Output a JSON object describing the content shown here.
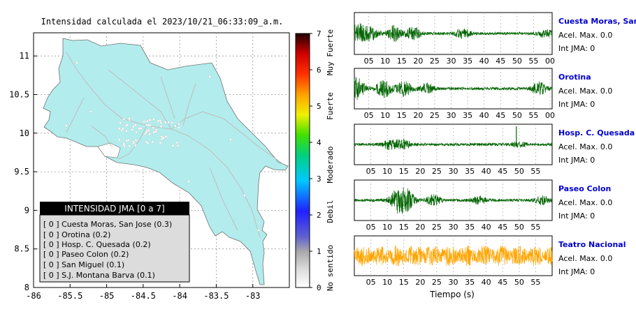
{
  "map": {
    "title": "Intensidad calculada el 2023/10/21_06:33:09_a.m.",
    "x_ticks": [
      "-86",
      "-85.5",
      "-85",
      "-84.5",
      "-84",
      "-83.5",
      "-83"
    ],
    "y_ticks": [
      "11",
      "10.5",
      "10",
      "9.5",
      "9",
      "8.5",
      "8"
    ],
    "xlim": [
      -86,
      -82.5
    ],
    "ylim": [
      8,
      11.3
    ],
    "land_color": "#b3ecec",
    "road_color": "#bdbdbd"
  },
  "legend": {
    "title": "INTENSIDAD JMA [0 a 7]",
    "items": [
      "[ 0 ]  Cuesta Moras, San Jose (0.3)",
      "[ 0 ]  Orotina (0.2)",
      "[ 0 ]  Hosp. C. Quesada (0.2)",
      "[ 0 ]  Paseo Colon (0.2)",
      "[ 0 ]  San Miguel (0.1)",
      "[ 0 ]  S.J. Montana Barva (0.1)"
    ]
  },
  "colorbar": {
    "ticks": [
      "0",
      "1",
      "2",
      "3",
      "4",
      "5",
      "6",
      "7"
    ],
    "labels": [
      "No sentido",
      "Debil",
      "Moderado",
      "Fuerte",
      "Muy Fuerte"
    ]
  },
  "waveforms": {
    "xlabel": "Tiempo (s)",
    "ticks_a": [
      "05",
      "10",
      "15",
      "20",
      "25",
      "30",
      "35",
      "40",
      "45",
      "50",
      "55",
      "00"
    ],
    "ticks_b": [
      "05",
      "10",
      "15",
      "20",
      "25",
      "30",
      "35",
      "40",
      "45",
      "50",
      "55"
    ],
    "stations": [
      {
        "name": "Cuesta Moras, San Jose",
        "accel": "Acel. Max. 0.0",
        "jma": "Int JMA: 0",
        "color": "#006400",
        "activity": [
          [
            1,
            8
          ],
          [
            5,
            5
          ],
          [
            12,
            6
          ],
          [
            18,
            5
          ],
          [
            33,
            4
          ],
          [
            58,
            3
          ]
        ]
      },
      {
        "name": "Orotina",
        "accel": "Acel. Max. 0.0",
        "jma": "Int JMA: 0",
        "color": "#006400",
        "activity": [
          [
            1,
            9
          ],
          [
            9,
            7
          ],
          [
            15,
            6
          ],
          [
            22,
            4
          ],
          [
            56,
            5
          ]
        ]
      },
      {
        "name": "Hosp. C. Quesada",
        "accel": "Acel. Max. 0.0",
        "jma": "Int JMA: 0",
        "color": "#006400",
        "activity": [
          [
            11,
            4
          ],
          [
            15,
            3
          ],
          [
            50,
            2
          ]
        ]
      },
      {
        "name": "Paseo Colon",
        "accel": "Acel. Max. 0.0",
        "jma": "Int JMA: 0",
        "color": "#006400",
        "activity": [
          [
            13,
            9
          ],
          [
            16,
            8
          ],
          [
            24,
            4
          ],
          [
            38,
            3
          ],
          [
            57,
            3
          ]
        ]
      },
      {
        "name": "Teatro Nacional",
        "accel": "Acel. Max. 0.0",
        "jma": "Int JMA: 0",
        "color": "#ffa500",
        "activity": [
          [
            0,
            9
          ],
          [
            10,
            9
          ],
          [
            20,
            9
          ],
          [
            30,
            9
          ],
          [
            40,
            9
          ],
          [
            50,
            9
          ]
        ]
      }
    ]
  }
}
